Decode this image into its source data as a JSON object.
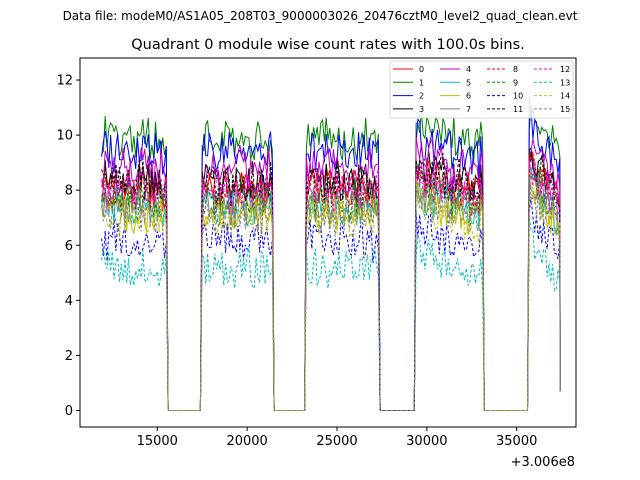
{
  "chart_data": {
    "type": "line",
    "suptitle": "Data file: modeM0/AS1A05_208T03_9000003026_20476cztM0_level2_quad_clean.evt",
    "title": "Quadrant 0 module wise count rates with 100.0s bins.",
    "xlabel": "",
    "ylabel": "",
    "x_offset_label": "+3.006e8",
    "xlim": [
      10700,
      38300
    ],
    "ylim": [
      -0.6,
      12.8
    ],
    "xticks": [
      15000,
      20000,
      25000,
      30000,
      35000
    ],
    "xtick_labels": [
      "15000",
      "20000",
      "25000",
      "30000",
      "35000"
    ],
    "yticks": [
      0,
      2,
      4,
      6,
      8,
      10,
      12
    ],
    "ytick_labels": [
      "0",
      "2",
      "4",
      "6",
      "8",
      "10",
      "12"
    ],
    "grid": false,
    "legend_position": "top-right",
    "legend_columns": 4,
    "active_segments": [
      [
        11900,
        15500
      ],
      [
        17500,
        21400
      ],
      [
        23300,
        27300
      ],
      [
        29400,
        33100
      ],
      [
        35700,
        37400
      ]
    ],
    "gap_level": 0,
    "series": [
      {
        "name": "0",
        "color": "#ff0000",
        "dashed": false,
        "mean_rate": 8.1
      },
      {
        "name": "1",
        "color": "#008000",
        "dashed": false,
        "mean_rate": 9.9
      },
      {
        "name": "2",
        "color": "#0000ff",
        "dashed": false,
        "mean_rate": 9.4
      },
      {
        "name": "3",
        "color": "#000000",
        "dashed": false,
        "mean_rate": 8.4
      },
      {
        "name": "4",
        "color": "#bf00bf",
        "dashed": false,
        "mean_rate": 8.8
      },
      {
        "name": "5",
        "color": "#00bfbf",
        "dashed": false,
        "mean_rate": 7.4
      },
      {
        "name": "6",
        "color": "#bfbf00",
        "dashed": false,
        "mean_rate": 7.2
      },
      {
        "name": "7",
        "color": "#808080",
        "dashed": false,
        "mean_rate": 7.6
      },
      {
        "name": "8",
        "color": "#ff0000",
        "dashed": true,
        "mean_rate": 7.9
      },
      {
        "name": "9",
        "color": "#008000",
        "dashed": true,
        "mean_rate": 7.7
      },
      {
        "name": "10",
        "color": "#0000ff",
        "dashed": true,
        "mean_rate": 6.2
      },
      {
        "name": "11",
        "color": "#000000",
        "dashed": true,
        "mean_rate": 8.3
      },
      {
        "name": "12",
        "color": "#ff00ff",
        "dashed": true,
        "mean_rate": 8.0
      },
      {
        "name": "13",
        "color": "#00bfbf",
        "dashed": true,
        "mean_rate": 5.2
      },
      {
        "name": "14",
        "color": "#bfbf00",
        "dashed": true,
        "mean_rate": 7.0
      },
      {
        "name": "15",
        "color": "#808080",
        "dashed": true,
        "mean_rate": 7.1
      }
    ]
  }
}
